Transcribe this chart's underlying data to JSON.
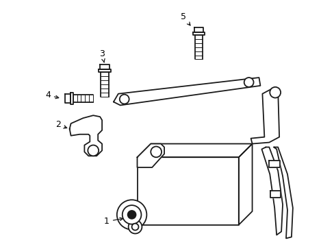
{
  "background_color": "#ffffff",
  "line_color": "#1a1a1a",
  "line_width": 1.3,
  "label_fontsize": 9,
  "arrow_color": "#1a1a1a",
  "figsize": [
    4.89,
    3.6
  ],
  "dpi": 100
}
